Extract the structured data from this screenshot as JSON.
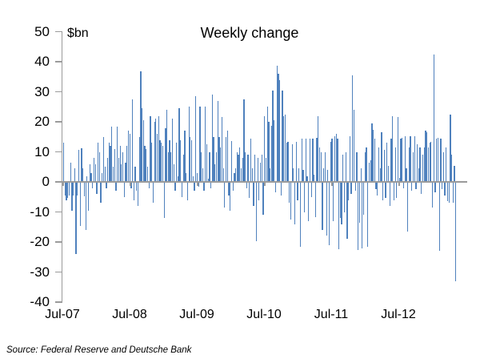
{
  "chart": {
    "title": "Weekly change",
    "unit_label": "$bn",
    "source": "Source: Federal Reserve and Deutsche Bank"
  },
  "chart_data": {
    "type": "bar",
    "title": "Weekly change",
    "ylabel": "$bn",
    "ylim": [
      -40,
      50
    ],
    "ytick_interval": 10,
    "yticks": [
      50,
      40,
      30,
      20,
      10,
      0,
      -10,
      -20,
      -30,
      -40
    ],
    "xticks": [
      "Jul-07",
      "Jul-08",
      "Jul-09",
      "Jul-10",
      "Jul-11",
      "Jul-12"
    ],
    "x_start": "Jul-07",
    "frequency": "weekly",
    "grid": false,
    "legend": false,
    "bar_color": "#4f81bd",
    "axis_color": "#9b9b9b",
    "source": "Source: Federal Reserve and Deutsche Bank",
    "values": [
      13,
      -4.4,
      -6,
      -5.2,
      -4.4,
      6.3,
      -9.7,
      -4.4,
      4.5,
      -23.9,
      -4.4,
      10.8,
      -14.6,
      11.2,
      4.5,
      -4.8,
      -16,
      2,
      -9.5,
      6,
      3,
      -2,
      8,
      6,
      -4,
      13,
      10,
      -7,
      3,
      15,
      5,
      -2,
      8,
      13,
      12,
      18.5,
      5,
      11,
      -3,
      18.5,
      8,
      12,
      6,
      10,
      -5,
      6.4,
      12,
      17,
      16,
      -2,
      27.5,
      -6,
      5,
      -3,
      -8,
      15,
      36.7,
      24.5,
      20.5,
      12,
      11,
      5,
      -2,
      22,
      13,
      -7,
      20,
      21,
      16,
      22,
      14,
      13,
      12,
      -12,
      18,
      24,
      10,
      14,
      10,
      21,
      6,
      -3,
      13,
      2,
      24.5,
      14,
      -5,
      9,
      17,
      3,
      -6,
      25,
      15,
      14,
      2,
      -3,
      28.5,
      3,
      -1.5,
      25,
      10,
      4.5,
      -3,
      25,
      12.5,
      1,
      10,
      -2,
      29,
      15,
      6,
      10,
      27,
      15,
      11.5,
      21.5,
      4.5,
      -8.5,
      15,
      17,
      -4.5,
      -9.5,
      13.5,
      -3,
      3,
      4.5,
      10,
      9,
      11.5,
      4.5,
      8,
      27.6,
      10,
      -2,
      9,
      -5.4,
      14.3,
      4.5,
      -8,
      9,
      -19.6,
      8,
      -6.2,
      6.3,
      9,
      -10.8,
      21.9,
      8,
      25,
      20,
      4.5,
      18.8,
      30.3,
      20.5,
      -3.5,
      38.8,
      36.1,
      33.9,
      -4.5,
      30.3,
      21.9,
      22.3,
      13,
      13.4,
      -7,
      -12.5,
      12.5,
      4.5,
      -14,
      13.4,
      -6,
      4.5,
      -21.5,
      14.3,
      4,
      -10,
      14.3,
      1.9,
      -13,
      14.3,
      -5,
      14.3,
      2.3,
      -11.6,
      14.8,
      21.9,
      11.6,
      9.9,
      -16,
      4.5,
      9.9,
      -17.8,
      4,
      -21,
      13.4,
      14.3,
      -13,
      15.2,
      16.1,
      14.3,
      -22.4,
      -12,
      -14,
      9,
      -10,
      9.9,
      -19,
      -6,
      15.2,
      -4,
      35.6,
      24.1,
      -3,
      9.9,
      -22.6,
      -13.5,
      4.5,
      -22,
      -11,
      9.9,
      11.6,
      -21.5,
      6.3,
      7.2,
      19.6,
      17.4,
      14.3,
      -2.5,
      -4.5,
      11.6,
      4.5,
      16.5,
      -6,
      10.8,
      -5.4,
      13,
      5.4,
      -8,
      14.3,
      21.9,
      -6.2,
      11.6,
      -5.2,
      21.7,
      1.4,
      14.3,
      14.8,
      -2,
      15.2,
      4.5,
      -16.5,
      11.6,
      15.2,
      -3,
      9.9,
      15.2,
      -2.5,
      12.5,
      4.5,
      11.6,
      -4,
      9,
      11.6,
      17,
      16.5,
      11.6,
      13,
      13.4,
      -8.5,
      42.3,
      -3.5,
      14.3,
      14.8,
      -23,
      14.3,
      -2.5,
      9.9,
      -4.5,
      11.6,
      -6.5,
      -7,
      22.3,
      9,
      -7,
      5.4,
      -33
    ]
  }
}
